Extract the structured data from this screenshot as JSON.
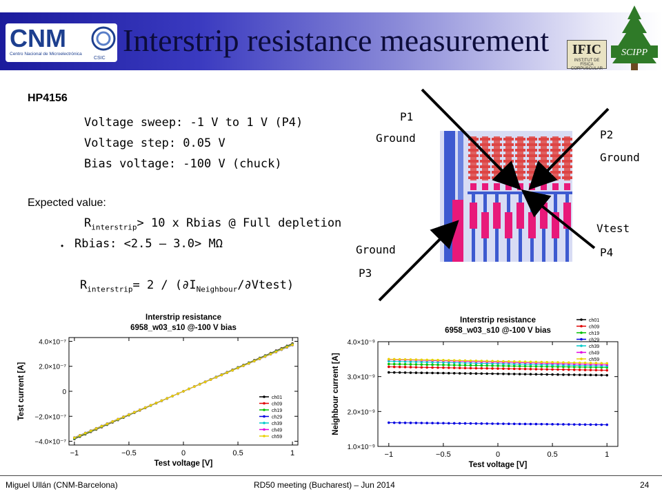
{
  "header": {
    "title": "Interstrip resistance measurement",
    "cnm_logo_text": "CNM",
    "cnm_logo_subtitle": "Centro Nacional de Microelectrónica",
    "cnm_logo_csic": "CSIC",
    "ific_logo_text": "IFIC",
    "ific_logo_subtitle": "INSTITUT DE FÍSICA CORPUSCULAR",
    "scipp_logo_text": "SCIPP"
  },
  "content": {
    "instrument": "HP4156",
    "sweep": "Voltage sweep: -1 V to 1 V (P4)",
    "step": "Voltage step: 0.05 V",
    "bias": "Bias voltage: -100 V (chuck)",
    "expected_label": "Expected value:",
    "expected_r": "R",
    "expected_sub": "interstrip",
    "expected_rest": "> 10 x Rbias @ Full depletion",
    "rbias_bullet": "Rbias: <2.5 – 3.0> MΩ",
    "formula_r": "R",
    "formula_sub": "interstrip",
    "formula_mid": "= 2 / (∂I",
    "formula_sub2": "Neighbour",
    "formula_end": "/∂Vtest)"
  },
  "diagram": {
    "p1": "P1",
    "p1_role": "Ground",
    "p2": "P2",
    "p2_role": "Ground",
    "p3": "P3",
    "p3_role": "Ground",
    "p4": "P4",
    "p4_role": "Vtest"
  },
  "chart_data": [
    {
      "type": "line",
      "title": "Interstrip resistance",
      "subtitle": "6958_w03_s10 @-100 V bias",
      "xlabel": "Test voltage [V]",
      "ylabel": "Test current [A]",
      "xlim": [
        -1.05,
        1.05
      ],
      "ylim": [
        -4.3e-07,
        4.3e-07
      ],
      "x_ticks": [
        -1,
        -0.5,
        0,
        0.5,
        1
      ],
      "x_tick_labels": [
        "−1",
        "−0.5",
        "0",
        "0.5",
        "1"
      ],
      "y_ticks": [
        -4e-07,
        -2e-07,
        0,
        2e-07,
        4e-07
      ],
      "y_tick_labels": [
        "−4.0×10⁻⁷",
        "−2.0×10⁻⁷",
        "0",
        "2.0×10⁻⁷",
        "4.0×10⁻⁷"
      ],
      "legend_position": "bottom-right",
      "x_start": -1,
      "x_step": 0.05,
      "n_points": 41,
      "series": [
        {
          "name": "ch01",
          "color": "#000000",
          "y_at_minus1": -3.82e-07,
          "y_at_plus1": 3.82e-07
        },
        {
          "name": "ch09",
          "color": "#e00000",
          "y_at_minus1": -3.8e-07,
          "y_at_plus1": 3.8e-07
        },
        {
          "name": "ch19",
          "color": "#00c000",
          "y_at_minus1": -3.78e-07,
          "y_at_plus1": 3.78e-07
        },
        {
          "name": "ch29",
          "color": "#0000e0",
          "y_at_minus1": -3.7e-07,
          "y_at_plus1": 3.7e-07
        },
        {
          "name": "ch39",
          "color": "#00c8c8",
          "y_at_minus1": -3.75e-07,
          "y_at_plus1": 3.75e-07
        },
        {
          "name": "ch49",
          "color": "#e000e0",
          "y_at_minus1": -3.73e-07,
          "y_at_plus1": 3.73e-07
        },
        {
          "name": "ch59",
          "color": "#e8d000",
          "y_at_minus1": -3.72e-07,
          "y_at_plus1": 3.72e-07
        }
      ]
    },
    {
      "type": "line",
      "title": "Interstrip resistance",
      "subtitle": "6958_w03_s10 @-100 V bias",
      "xlabel": "Test voltage [V]",
      "ylabel": "Neighbour current [A]",
      "xlim": [
        -1.1,
        1.1
      ],
      "ylim": [
        1e-09,
        4e-09
      ],
      "x_ticks": [
        -1,
        -0.5,
        0,
        0.5,
        1
      ],
      "x_tick_labels": [
        "−1",
        "−0.5",
        "0",
        "0.5",
        "1"
      ],
      "y_ticks": [
        1e-09,
        2e-09,
        3e-09,
        4e-09
      ],
      "y_tick_labels": [
        "1.0×10⁻⁹",
        "2.0×10⁻⁹",
        "3.0×10⁻⁹",
        "4.0×10⁻⁹"
      ],
      "legend_position": "top-right",
      "x_start": -1,
      "x_step": 0.05,
      "n_points": 41,
      "series": [
        {
          "name": "ch01",
          "color": "#000000",
          "y_at_minus1": 3.12e-09,
          "y_at_plus1": 3.04e-09
        },
        {
          "name": "ch09",
          "color": "#e00000",
          "y_at_minus1": 3.28e-09,
          "y_at_plus1": 3.18e-09
        },
        {
          "name": "ch19",
          "color": "#00c000",
          "y_at_minus1": 3.36e-09,
          "y_at_plus1": 3.26e-09
        },
        {
          "name": "ch29",
          "color": "#0000e0",
          "y_at_minus1": 1.68e-09,
          "y_at_plus1": 1.62e-09
        },
        {
          "name": "ch39",
          "color": "#00c8c8",
          "y_at_minus1": 3.44e-09,
          "y_at_plus1": 3.3e-09
        },
        {
          "name": "ch49",
          "color": "#e000e0",
          "y_at_minus1": 3.49e-09,
          "y_at_plus1": 3.34e-09
        },
        {
          "name": "ch59",
          "color": "#e8d000",
          "y_at_minus1": 3.5e-09,
          "y_at_plus1": 3.38e-09
        }
      ]
    }
  ],
  "footer": {
    "author": "Miguel Ullán (CNM-Barcelona)",
    "meeting": "RD50 meeting (Bucharest) – Jun 2014",
    "page": "24"
  }
}
